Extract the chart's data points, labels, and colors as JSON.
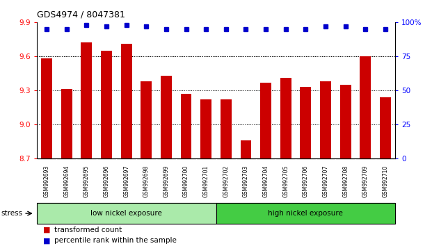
{
  "title": "GDS4974 / 8047381",
  "categories": [
    "GSM992693",
    "GSM992694",
    "GSM992695",
    "GSM992696",
    "GSM992697",
    "GSM992698",
    "GSM992699",
    "GSM992700",
    "GSM992701",
    "GSM992702",
    "GSM992703",
    "GSM992704",
    "GSM992705",
    "GSM992706",
    "GSM992707",
    "GSM992708",
    "GSM992709",
    "GSM992710"
  ],
  "bar_values": [
    9.58,
    9.31,
    9.72,
    9.65,
    9.71,
    9.38,
    9.43,
    9.27,
    9.22,
    9.22,
    8.86,
    9.37,
    9.41,
    9.33,
    9.38,
    9.35,
    9.6,
    9.24
  ],
  "percentile_values": [
    95,
    95,
    98,
    97,
    98,
    97,
    95,
    95,
    95,
    95,
    95,
    95,
    95,
    95,
    97,
    97,
    95,
    95
  ],
  "bar_color": "#cc0000",
  "percentile_color": "#0000cc",
  "ylim_left": [
    8.7,
    9.9
  ],
  "ylim_right": [
    0,
    100
  ],
  "yticks_left": [
    8.7,
    9.0,
    9.3,
    9.6,
    9.9
  ],
  "yticks_right": [
    0,
    25,
    50,
    75,
    100
  ],
  "groups": [
    {
      "label": "low nickel exposure",
      "start": 0,
      "end": 9,
      "color": "#aaeaaa"
    },
    {
      "label": "high nickel exposure",
      "start": 9,
      "end": 18,
      "color": "#44cc44"
    }
  ],
  "stress_label": "stress",
  "legend_items": [
    {
      "label": "transformed count",
      "color": "#cc0000"
    },
    {
      "label": "percentile rank within the sample",
      "color": "#0000cc"
    }
  ],
  "background_color": "#ffffff",
  "tick_label_bg": "#d0d0d0"
}
